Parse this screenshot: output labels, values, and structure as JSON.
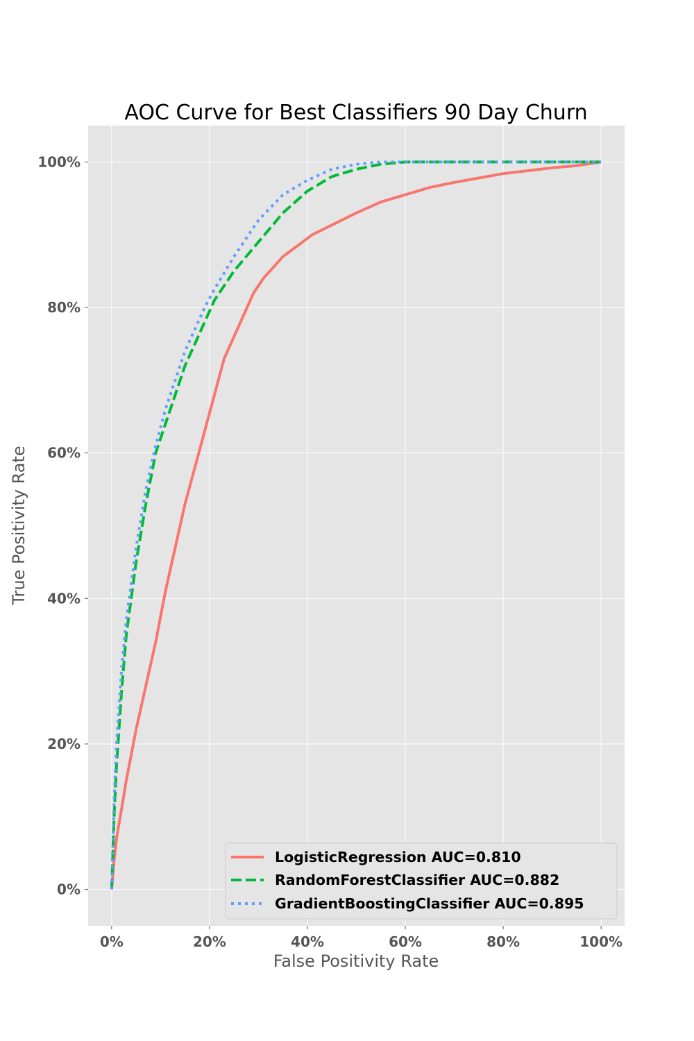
{
  "chart_data": {
    "type": "line",
    "title": "AOC Curve for Best Classifiers 90 Day Churn",
    "xlabel": "False Positivity Rate",
    "ylabel": "True Positivity Rate",
    "xlim": [
      -0.048,
      1.048
    ],
    "ylim": [
      -0.05,
      1.05
    ],
    "xticks": [
      0,
      0.2,
      0.4,
      0.6,
      0.8,
      1.0
    ],
    "xtick_labels": [
      "0%",
      "20%",
      "40%",
      "60%",
      "80%",
      "100%"
    ],
    "yticks": [
      0,
      0.2,
      0.4,
      0.6,
      0.8,
      1.0
    ],
    "ytick_labels": [
      "0%",
      "20%",
      "40%",
      "60%",
      "80%",
      "100%"
    ],
    "grid": true,
    "legend_position": "lower-right",
    "series": [
      {
        "name": "LogisticRegression AUC=0.810",
        "color": "#f8766d",
        "style": "solid",
        "x": [
          0,
          0.005,
          0.01,
          0.02,
          0.03,
          0.05,
          0.07,
          0.09,
          0.11,
          0.13,
          0.15,
          0.17,
          0.19,
          0.21,
          0.23,
          0.25,
          0.27,
          0.29,
          0.31,
          0.33,
          0.35,
          0.38,
          0.41,
          0.44,
          0.47,
          0.5,
          0.55,
          0.6,
          0.65,
          0.7,
          0.75,
          0.8,
          0.85,
          0.9,
          0.95,
          1.0
        ],
        "y": [
          0,
          0.04,
          0.07,
          0.11,
          0.15,
          0.22,
          0.28,
          0.34,
          0.41,
          0.47,
          0.53,
          0.58,
          0.63,
          0.68,
          0.73,
          0.76,
          0.79,
          0.82,
          0.84,
          0.855,
          0.87,
          0.885,
          0.9,
          0.91,
          0.92,
          0.93,
          0.945,
          0.955,
          0.965,
          0.972,
          0.978,
          0.984,
          0.988,
          0.992,
          0.995,
          1.0
        ]
      },
      {
        "name": "RandomForestClassifier AUC=0.882",
        "color": "#00ba38",
        "style": "dashed",
        "x": [
          0,
          0.005,
          0.01,
          0.02,
          0.03,
          0.05,
          0.07,
          0.09,
          0.11,
          0.13,
          0.15,
          0.17,
          0.19,
          0.21,
          0.25,
          0.3,
          0.35,
          0.4,
          0.45,
          0.5,
          0.55,
          0.6,
          0.7,
          0.8,
          0.9,
          1.0
        ],
        "y": [
          0,
          0.1,
          0.17,
          0.27,
          0.35,
          0.45,
          0.53,
          0.6,
          0.64,
          0.68,
          0.72,
          0.75,
          0.78,
          0.81,
          0.85,
          0.89,
          0.93,
          0.96,
          0.98,
          0.99,
          0.997,
          1.0,
          1.0,
          1.0,
          1.0,
          1.0
        ]
      },
      {
        "name": "GradientBoostingClassifier AUC=0.895",
        "color": "#619cff",
        "style": "dotted",
        "x": [
          0,
          0.005,
          0.01,
          0.02,
          0.03,
          0.05,
          0.07,
          0.09,
          0.11,
          0.13,
          0.15,
          0.17,
          0.19,
          0.21,
          0.25,
          0.3,
          0.35,
          0.4,
          0.45,
          0.5,
          0.55,
          0.6,
          0.7,
          0.8,
          0.9,
          1.0
        ],
        "y": [
          0,
          0.12,
          0.2,
          0.3,
          0.37,
          0.47,
          0.55,
          0.61,
          0.66,
          0.7,
          0.74,
          0.77,
          0.8,
          0.825,
          0.87,
          0.92,
          0.955,
          0.975,
          0.99,
          0.997,
          1.0,
          1.0,
          1.0,
          1.0,
          1.0,
          1.0
        ]
      }
    ]
  }
}
